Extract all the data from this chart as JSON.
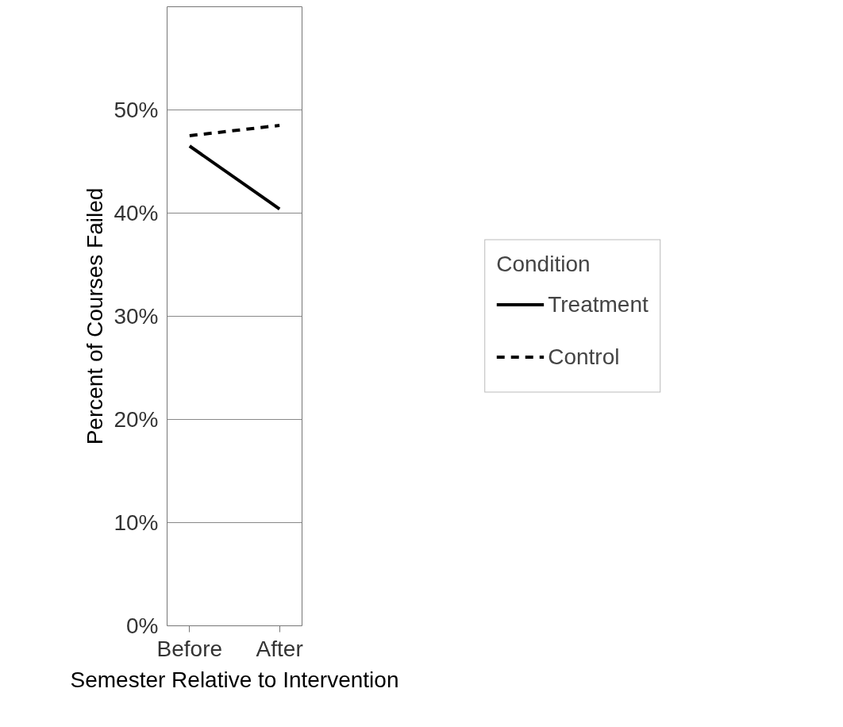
{
  "chart_data": {
    "type": "line",
    "xlabel": "Semester Relative to Intervention",
    "ylabel": "Percent of Courses Failed",
    "legend_title": "Condition",
    "categories": [
      "Before",
      "After"
    ],
    "series": [
      {
        "name": "Treatment",
        "color": "#000000",
        "line_style": "solid",
        "values": [
          46.5,
          40.4
        ]
      },
      {
        "name": "Control",
        "color": "#000000",
        "line_style": "dashed",
        "values": [
          47.5,
          48.5
        ]
      }
    ],
    "ylim": [
      0,
      60
    ],
    "yticks": [
      {
        "value": 0,
        "label": "0%"
      },
      {
        "value": 10,
        "label": "10%"
      },
      {
        "value": 20,
        "label": "20%"
      },
      {
        "value": 30,
        "label": "30%"
      },
      {
        "value": 40,
        "label": "40%"
      },
      {
        "value": 50,
        "label": "50%"
      }
    ],
    "grid": "y",
    "legend": "right",
    "marker": "none"
  }
}
